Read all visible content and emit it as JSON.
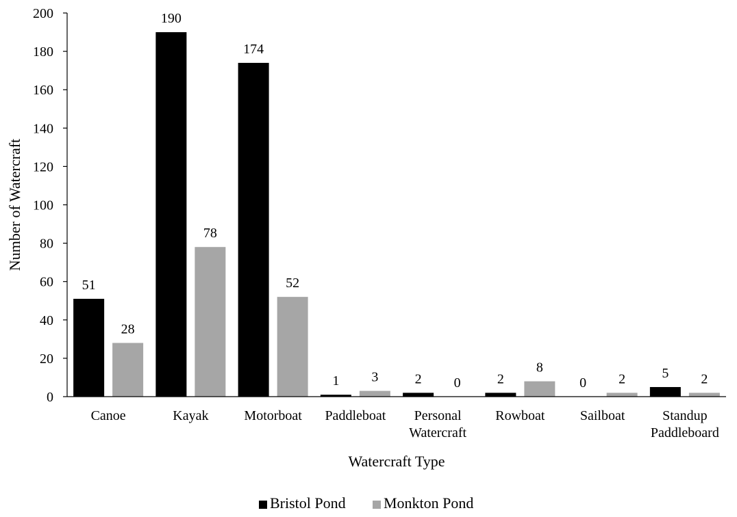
{
  "chart_data": {
    "type": "bar",
    "title": "",
    "xlabel": "Watercraft Type",
    "ylabel": "Number of Watercraft",
    "ylim": [
      0,
      200
    ],
    "yticks": [
      0,
      20,
      40,
      60,
      80,
      100,
      120,
      140,
      160,
      180,
      200
    ],
    "grid": false,
    "legend_position": "bottom",
    "categories": [
      [
        "Canoe"
      ],
      [
        "Kayak"
      ],
      [
        "Motorboat"
      ],
      [
        "Paddleboat"
      ],
      [
        "Personal",
        "Watercraft"
      ],
      [
        "Rowboat"
      ],
      [
        "Sailboat"
      ],
      [
        "Standup",
        "Paddleboard"
      ]
    ],
    "series": [
      {
        "name": "Bristol Pond",
        "color": "#000000",
        "values": [
          51,
          190,
          174,
          1,
          2,
          2,
          0,
          5
        ]
      },
      {
        "name": "Monkton Pond",
        "color": "#a6a6a6",
        "values": [
          28,
          78,
          52,
          3,
          0,
          8,
          2,
          2
        ]
      }
    ],
    "data_labels": true
  }
}
